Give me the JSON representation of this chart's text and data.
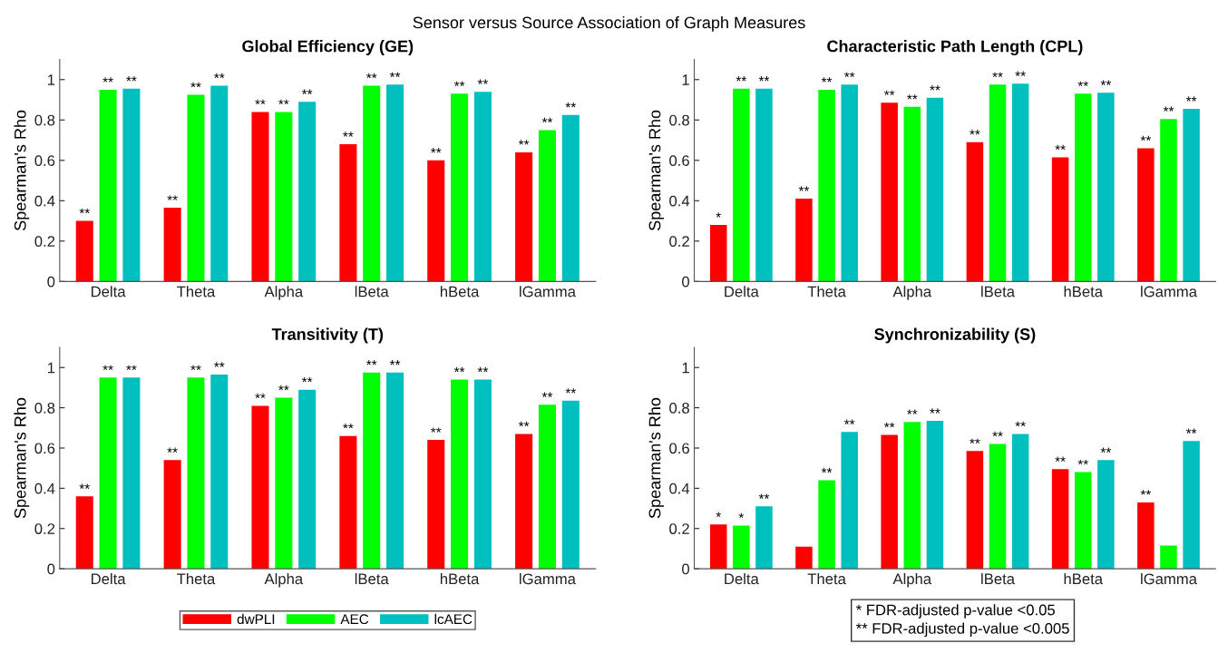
{
  "chart_data": [
    {
      "type": "bar",
      "title": "Global Efficiency (GE)",
      "ylabel": "Spearman's Rho",
      "annotations": [
        "Sensor versus Source Association of Graph Measures"
      ],
      "categories": [
        "Delta",
        "Theta",
        "Alpha",
        "lBeta",
        "hBeta",
        "lGamma"
      ],
      "ylim": [
        0,
        1.1
      ],
      "yticks": [
        0,
        0.2,
        0.4,
        0.6,
        0.8,
        1
      ],
      "grid": false,
      "legend": false,
      "series": [
        {
          "color": "#ff0000",
          "values": [
            0.3,
            0.365,
            0.84,
            0.68,
            0.6,
            0.64
          ],
          "value_labels": [
            "**",
            "**",
            "**",
            "**",
            "**",
            "**"
          ]
        },
        {
          "color": "#00ff00",
          "values": [
            0.95,
            0.925,
            0.84,
            0.97,
            0.93,
            0.75
          ],
          "value_labels": [
            "**",
            "**",
            "**",
            "**",
            "**",
            "**"
          ]
        },
        {
          "color": "#00bfbf",
          "values": [
            0.955,
            0.97,
            0.89,
            0.975,
            0.94,
            0.825
          ],
          "value_labels": [
            "**",
            "**",
            "**",
            "**",
            "**",
            "**"
          ]
        }
      ]
    },
    {
      "type": "bar",
      "title": "Characteristic Path Length (CPL)",
      "ylabel": "Spearman's Rho",
      "categories": [
        "Delta",
        "Theta",
        "Alpha",
        "lBeta",
        "hBeta",
        "lGamma"
      ],
      "ylim": [
        0,
        1.1
      ],
      "yticks": [
        0,
        0.2,
        0.4,
        0.6,
        0.8,
        1
      ],
      "grid": false,
      "legend": false,
      "series": [
        {
          "color": "#ff0000",
          "values": [
            0.28,
            0.41,
            0.885,
            0.69,
            0.615,
            0.66
          ],
          "value_labels": [
            "*",
            "**",
            "**",
            "**",
            "**",
            "**"
          ]
        },
        {
          "color": "#00ff00",
          "values": [
            0.955,
            0.95,
            0.865,
            0.975,
            0.93,
            0.805
          ],
          "value_labels": [
            "**",
            "**",
            "**",
            "**",
            "**",
            "**"
          ]
        },
        {
          "color": "#00bfbf",
          "values": [
            0.955,
            0.975,
            0.91,
            0.98,
            0.935,
            0.855
          ],
          "value_labels": [
            "**",
            "**",
            "**",
            "**",
            "**",
            "**"
          ]
        }
      ]
    },
    {
      "type": "bar",
      "title": "Transitivity (T)",
      "ylabel": "Spearman's Rho",
      "categories": [
        "Delta",
        "Theta",
        "Alpha",
        "lBeta",
        "hBeta",
        "lGamma"
      ],
      "ylim": [
        0,
        1.1
      ],
      "yticks": [
        0,
        0.2,
        0.4,
        0.6,
        0.8,
        1
      ],
      "grid": false,
      "legend": "bottom",
      "series": [
        {
          "name": "dwPLI",
          "color": "#ff0000",
          "values": [
            0.36,
            0.54,
            0.81,
            0.66,
            0.64,
            0.67
          ],
          "value_labels": [
            "**",
            "**",
            "**",
            "**",
            "**",
            "**"
          ]
        },
        {
          "name": "AEC",
          "color": "#00ff00",
          "values": [
            0.95,
            0.95,
            0.85,
            0.975,
            0.94,
            0.815
          ],
          "value_labels": [
            "**",
            "**",
            "**",
            "**",
            "**",
            "**"
          ]
        },
        {
          "name": "lcAEC",
          "color": "#00bfbf",
          "values": [
            0.95,
            0.965,
            0.89,
            0.975,
            0.94,
            0.835
          ],
          "value_labels": [
            "**",
            "**",
            "**",
            "**",
            "**",
            "**"
          ]
        }
      ]
    },
    {
      "type": "bar",
      "title": "Synchronizability (S)",
      "ylabel": "Spearman's Rho",
      "annotations": [
        "* FDR-adjusted p-value <0.05",
        "** FDR-adjusted p-value <0.005"
      ],
      "categories": [
        "Delta",
        "Theta",
        "Alpha",
        "lBeta",
        "hBeta",
        "lGamma"
      ],
      "ylim": [
        0,
        1.1
      ],
      "yticks": [
        0,
        0.2,
        0.4,
        0.6,
        0.8,
        1
      ],
      "grid": false,
      "legend": false,
      "series": [
        {
          "color": "#ff0000",
          "values": [
            0.22,
            0.11,
            0.665,
            0.585,
            0.495,
            0.33
          ],
          "value_labels": [
            "*",
            null,
            "**",
            "**",
            "**",
            "**"
          ]
        },
        {
          "color": "#00ff00",
          "values": [
            0.215,
            0.44,
            0.73,
            0.62,
            0.48,
            0.115
          ],
          "value_labels": [
            "*",
            "**",
            "**",
            "**",
            "**",
            null
          ]
        },
        {
          "color": "#00bfbf",
          "values": [
            0.31,
            0.68,
            0.735,
            0.67,
            0.54,
            0.635
          ],
          "value_labels": [
            "**",
            "**",
            "**",
            "**",
            "**",
            "**"
          ]
        }
      ]
    }
  ]
}
